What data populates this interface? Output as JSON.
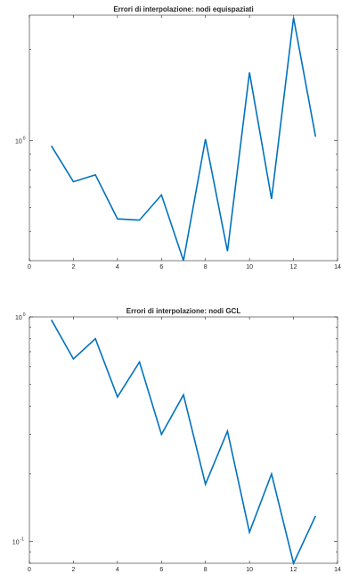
{
  "colors": {
    "line": "#0072bd",
    "axis": "#262626",
    "background": "#ffffff"
  },
  "chart_data": [
    {
      "type": "line",
      "title": "Errori di interpolazione: nodi equispaziati",
      "xlabel": "",
      "ylabel": "",
      "yscale": "log",
      "xlim": [
        0,
        14
      ],
      "ylim": [
        0.4,
        2.6
      ],
      "grid": false,
      "xticks": [
        {
          "value": 0,
          "label": "0"
        },
        {
          "value": 2,
          "label": "2"
        },
        {
          "value": 4,
          "label": "4"
        },
        {
          "value": 6,
          "label": "6"
        },
        {
          "value": 8,
          "label": "8"
        },
        {
          "value": 10,
          "label": "10"
        },
        {
          "value": 12,
          "label": "12"
        },
        {
          "value": 14,
          "label": "14"
        }
      ],
      "yticks": [
        {
          "value": 1,
          "base": "10",
          "exp": "0"
        }
      ],
      "series": [
        {
          "x": [
            1,
            2,
            3,
            4,
            5,
            6,
            7,
            8,
            9,
            10,
            11,
            12,
            13
          ],
          "y": [
            0.96,
            0.73,
            0.77,
            0.55,
            0.545,
            0.66,
            0.4,
            1.01,
            0.43,
            1.68,
            0.64,
            2.55,
            1.03
          ]
        }
      ]
    },
    {
      "type": "line",
      "title": "Errori di interpolazione: nodi GCL",
      "xlabel": "",
      "ylabel": "",
      "yscale": "log",
      "xlim": [
        0,
        14
      ],
      "ylim": [
        0.08,
        1.0
      ],
      "grid": false,
      "xticks": [
        {
          "value": 0,
          "label": "0"
        },
        {
          "value": 2,
          "label": "2"
        },
        {
          "value": 4,
          "label": "4"
        },
        {
          "value": 6,
          "label": "6"
        },
        {
          "value": 8,
          "label": "8"
        },
        {
          "value": 10,
          "label": "10"
        },
        {
          "value": 12,
          "label": "12"
        },
        {
          "value": 14,
          "label": "14"
        }
      ],
      "yticks": [
        {
          "value": 0.1,
          "base": "10",
          "exp": "-1"
        },
        {
          "value": 1,
          "base": "10",
          "exp": "0"
        }
      ],
      "series": [
        {
          "x": [
            1,
            2,
            3,
            4,
            5,
            6,
            7,
            8,
            9,
            10,
            11,
            12,
            13
          ],
          "y": [
            0.97,
            0.65,
            0.8,
            0.44,
            0.63,
            0.3,
            0.45,
            0.18,
            0.31,
            0.11,
            0.2,
            0.08,
            0.13
          ]
        }
      ]
    }
  ]
}
